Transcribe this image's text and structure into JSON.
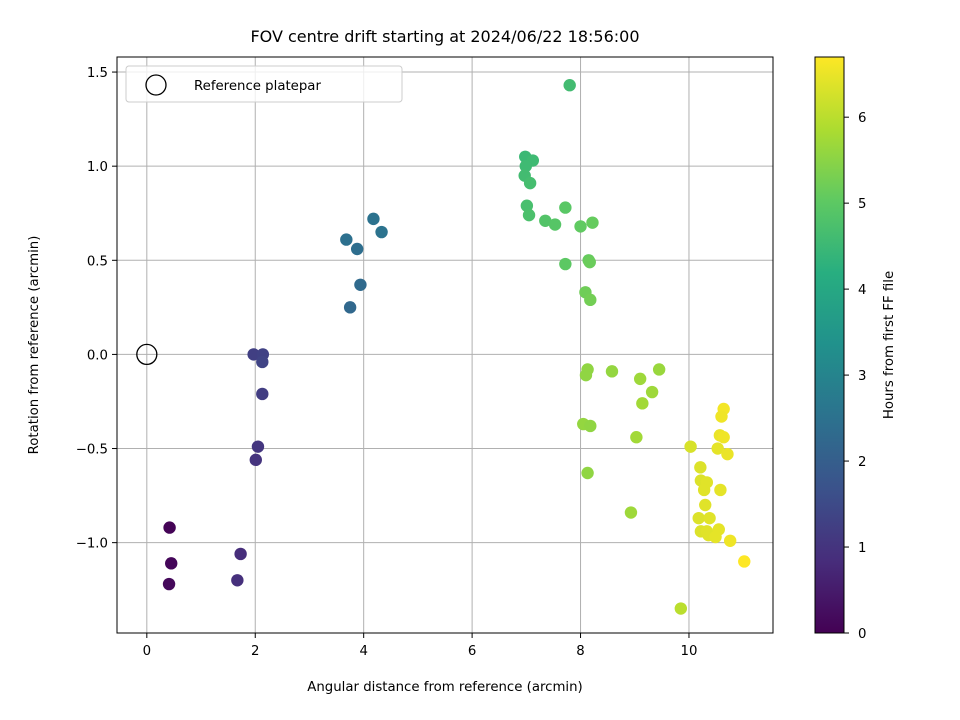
{
  "chart_data": {
    "type": "scatter",
    "title": "FOV centre drift starting at 2024/06/22 18:56:00",
    "xlabel": "Angular distance from reference (arcmin)",
    "ylabel": "Rotation from reference (arcmin)",
    "xlim": [
      -0.55,
      11.55
    ],
    "ylim": [
      -1.48,
      1.58
    ],
    "xticks": [
      0,
      2,
      4,
      6,
      8,
      10
    ],
    "yticks": [
      -1.0,
      -0.5,
      0.0,
      0.5,
      1.0,
      1.5
    ],
    "xtick_labels": [
      "0",
      "2",
      "4",
      "6",
      "8",
      "10"
    ],
    "ytick_labels": [
      "−1.0",
      "−0.5",
      "0.0",
      "0.5",
      "1.0",
      "1.5"
    ],
    "grid": true,
    "legend": {
      "placement": "top-left",
      "entries": [
        "Reference platepar"
      ]
    },
    "reference_point": {
      "x": 0,
      "y": 0
    },
    "colorbar": {
      "label": "Hours from first FF file",
      "colormap": "viridis",
      "range": [
        0,
        6.7
      ],
      "ticks": [
        0,
        1,
        2,
        3,
        4,
        5,
        6
      ],
      "tick_labels": [
        "0",
        "1",
        "2",
        "3",
        "4",
        "5",
        "6"
      ]
    },
    "points": [
      {
        "x": 0.42,
        "y": -0.92,
        "c": 0.05
      },
      {
        "x": 0.45,
        "y": -1.11,
        "c": 0.1
      },
      {
        "x": 0.41,
        "y": -1.22,
        "c": 0.15
      },
      {
        "x": 1.73,
        "y": -1.06,
        "c": 0.85
      },
      {
        "x": 1.67,
        "y": -1.2,
        "c": 0.9
      },
      {
        "x": 2.01,
        "y": -0.56,
        "c": 1.0
      },
      {
        "x": 2.05,
        "y": -0.49,
        "c": 1.05
      },
      {
        "x": 2.13,
        "y": -0.21,
        "c": 1.2
      },
      {
        "x": 1.97,
        "y": 0.0,
        "c": 1.25
      },
      {
        "x": 2.14,
        "y": 0.0,
        "c": 1.3
      },
      {
        "x": 2.13,
        "y": -0.04,
        "c": 1.35
      },
      {
        "x": 3.75,
        "y": 0.25,
        "c": 2.25
      },
      {
        "x": 3.94,
        "y": 0.37,
        "c": 2.3
      },
      {
        "x": 3.88,
        "y": 0.56,
        "c": 2.4
      },
      {
        "x": 3.68,
        "y": 0.61,
        "c": 2.45
      },
      {
        "x": 4.18,
        "y": 0.72,
        "c": 2.5
      },
      {
        "x": 4.33,
        "y": 0.65,
        "c": 2.55
      },
      {
        "x": 7.8,
        "y": 1.43,
        "c": 4.6
      },
      {
        "x": 6.98,
        "y": 1.05,
        "c": 4.5
      },
      {
        "x": 7.12,
        "y": 1.03,
        "c": 4.55
      },
      {
        "x": 6.99,
        "y": 1.0,
        "c": 4.55
      },
      {
        "x": 6.97,
        "y": 0.95,
        "c": 4.6
      },
      {
        "x": 7.07,
        "y": 0.91,
        "c": 4.65
      },
      {
        "x": 7.01,
        "y": 0.79,
        "c": 4.7
      },
      {
        "x": 7.05,
        "y": 0.74,
        "c": 4.75
      },
      {
        "x": 7.35,
        "y": 0.71,
        "c": 4.85
      },
      {
        "x": 7.53,
        "y": 0.69,
        "c": 4.9
      },
      {
        "x": 7.72,
        "y": 0.78,
        "c": 4.95
      },
      {
        "x": 8.0,
        "y": 0.68,
        "c": 5.05
      },
      {
        "x": 8.22,
        "y": 0.7,
        "c": 5.1
      },
      {
        "x": 7.72,
        "y": 0.48,
        "c": 5.0
      },
      {
        "x": 8.15,
        "y": 0.5,
        "c": 5.1
      },
      {
        "x": 8.17,
        "y": 0.49,
        "c": 5.15
      },
      {
        "x": 8.09,
        "y": 0.33,
        "c": 5.2
      },
      {
        "x": 8.18,
        "y": 0.29,
        "c": 5.25
      },
      {
        "x": 8.13,
        "y": -0.08,
        "c": 5.55
      },
      {
        "x": 8.1,
        "y": -0.11,
        "c": 5.55
      },
      {
        "x": 8.58,
        "y": -0.09,
        "c": 5.6
      },
      {
        "x": 9.45,
        "y": -0.08,
        "c": 5.65
      },
      {
        "x": 9.1,
        "y": -0.13,
        "c": 5.7
      },
      {
        "x": 9.32,
        "y": -0.2,
        "c": 5.7
      },
      {
        "x": 9.14,
        "y": -0.26,
        "c": 5.75
      },
      {
        "x": 8.05,
        "y": -0.37,
        "c": 5.6
      },
      {
        "x": 8.18,
        "y": -0.38,
        "c": 5.55
      },
      {
        "x": 9.03,
        "y": -0.44,
        "c": 5.75
      },
      {
        "x": 8.13,
        "y": -0.63,
        "c": 5.55
      },
      {
        "x": 8.93,
        "y": -0.84,
        "c": 5.7
      },
      {
        "x": 9.85,
        "y": -1.35,
        "c": 6.0
      },
      {
        "x": 10.64,
        "y": -0.29,
        "c": 6.6
      },
      {
        "x": 10.6,
        "y": -0.33,
        "c": 6.55
      },
      {
        "x": 10.57,
        "y": -0.43,
        "c": 6.5
      },
      {
        "x": 10.64,
        "y": -0.44,
        "c": 6.55
      },
      {
        "x": 10.53,
        "y": -0.5,
        "c": 6.45
      },
      {
        "x": 10.71,
        "y": -0.53,
        "c": 6.5
      },
      {
        "x": 10.03,
        "y": -0.49,
        "c": 6.3
      },
      {
        "x": 10.21,
        "y": -0.6,
        "c": 6.35
      },
      {
        "x": 10.22,
        "y": -0.67,
        "c": 6.35
      },
      {
        "x": 10.33,
        "y": -0.68,
        "c": 6.4
      },
      {
        "x": 10.28,
        "y": -0.72,
        "c": 6.4
      },
      {
        "x": 10.58,
        "y": -0.72,
        "c": 6.45
      },
      {
        "x": 10.3,
        "y": -0.8,
        "c": 6.4
      },
      {
        "x": 10.18,
        "y": -0.87,
        "c": 6.35
      },
      {
        "x": 10.38,
        "y": -0.87,
        "c": 6.4
      },
      {
        "x": 10.22,
        "y": -0.94,
        "c": 6.35
      },
      {
        "x": 10.33,
        "y": -0.94,
        "c": 6.4
      },
      {
        "x": 10.55,
        "y": -0.93,
        "c": 6.45
      },
      {
        "x": 10.36,
        "y": -0.96,
        "c": 6.4
      },
      {
        "x": 10.49,
        "y": -0.97,
        "c": 6.45
      },
      {
        "x": 10.76,
        "y": -0.99,
        "c": 6.55
      },
      {
        "x": 11.02,
        "y": -1.1,
        "c": 6.7
      }
    ]
  }
}
